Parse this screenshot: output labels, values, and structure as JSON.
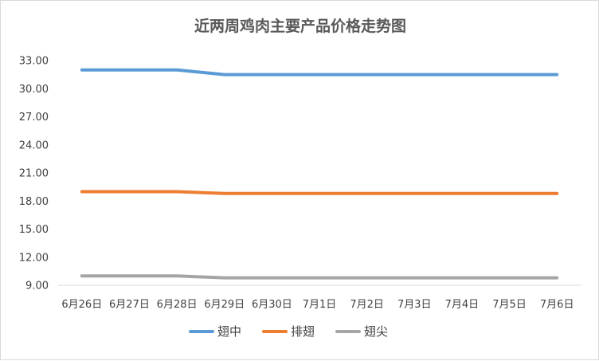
{
  "chart_data": {
    "type": "line",
    "title": "近两周鸡肉主要产品价格走势图",
    "categories": [
      "6月26日",
      "6月27日",
      "6月28日",
      "6月29日",
      "6月30日",
      "7月1日",
      "7月2日",
      "7月3日",
      "7月4日",
      "7月5日",
      "7月6日"
    ],
    "ylim": [
      9.0,
      33.0
    ],
    "yticks": [
      "9.00",
      "12.00",
      "15.00",
      "18.00",
      "21.00",
      "24.00",
      "27.00",
      "30.00",
      "33.00"
    ],
    "grid": false,
    "legend_position": "bottom",
    "series": [
      {
        "name": "翅中",
        "color": "#5b9bd5",
        "values": [
          32.0,
          32.0,
          32.0,
          31.5,
          31.5,
          31.5,
          31.5,
          31.5,
          31.5,
          31.5,
          31.5
        ]
      },
      {
        "name": "排翅",
        "color": "#ed7d31",
        "values": [
          19.0,
          19.0,
          19.0,
          18.8,
          18.8,
          18.8,
          18.8,
          18.8,
          18.8,
          18.8,
          18.8
        ]
      },
      {
        "name": "翅尖",
        "color": "#a5a5a5",
        "values": [
          10.0,
          10.0,
          10.0,
          9.8,
          9.8,
          9.8,
          9.8,
          9.8,
          9.8,
          9.8,
          9.8
        ]
      }
    ]
  }
}
